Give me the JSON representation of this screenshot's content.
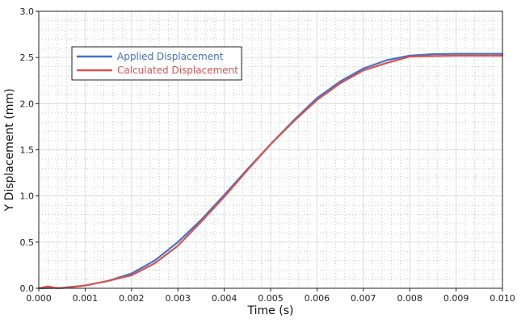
{
  "chart_data": {
    "type": "line",
    "title": "",
    "xlabel": "Time (s)",
    "ylabel": "Y Displacement (mm)",
    "xlim": [
      0,
      0.01
    ],
    "ylim": [
      0,
      3.0
    ],
    "xticks": [
      0,
      0.001,
      0.002,
      0.003,
      0.004,
      0.005,
      0.006,
      0.007,
      0.008,
      0.009,
      0.01
    ],
    "xtick_labels": [
      "0.000",
      "0.001",
      "0.002",
      "0.003",
      "0.004",
      "0.005",
      "0.006",
      "0.007",
      "0.008",
      "0.009",
      "0.010"
    ],
    "yticks": [
      0,
      0.5,
      1.0,
      1.5,
      2.0,
      2.5,
      3.0
    ],
    "ytick_labels": [
      "0.0",
      "0.5",
      "1.0",
      "1.5",
      "2.0",
      "2.5",
      "3.0"
    ],
    "grid": true,
    "minor_grid": true,
    "legend_position": "top-left",
    "series": [
      {
        "name": "Applied Displacement",
        "color": "#4472c4",
        "x": [
          0,
          0.0005,
          0.001,
          0.0015,
          0.002,
          0.0025,
          0.003,
          0.0035,
          0.004,
          0.0045,
          0.005,
          0.0055,
          0.006,
          0.0065,
          0.007,
          0.0075,
          0.008,
          0.0085,
          0.009,
          0.0095,
          0.01
        ],
        "y": [
          0,
          0.005,
          0.03,
          0.08,
          0.16,
          0.3,
          0.5,
          0.74,
          1.01,
          1.29,
          1.56,
          1.82,
          2.06,
          2.24,
          2.38,
          2.47,
          2.52,
          2.535,
          2.54,
          2.54,
          2.54
        ]
      },
      {
        "name": "Calculated Displacement",
        "color": "#d9534f",
        "x": [
          0,
          0.0002,
          0.0004,
          0.0006,
          0.001,
          0.0015,
          0.002,
          0.0025,
          0.003,
          0.0035,
          0.004,
          0.0045,
          0.005,
          0.0055,
          0.006,
          0.0065,
          0.007,
          0.0075,
          0.008,
          0.0085,
          0.009,
          0.0095,
          0.01
        ],
        "y": [
          0,
          0.02,
          0.0,
          0.005,
          0.03,
          0.08,
          0.14,
          0.27,
          0.46,
          0.72,
          0.99,
          1.28,
          1.56,
          1.81,
          2.04,
          2.22,
          2.36,
          2.44,
          2.51,
          2.515,
          2.52,
          2.52,
          2.52
        ]
      }
    ]
  }
}
